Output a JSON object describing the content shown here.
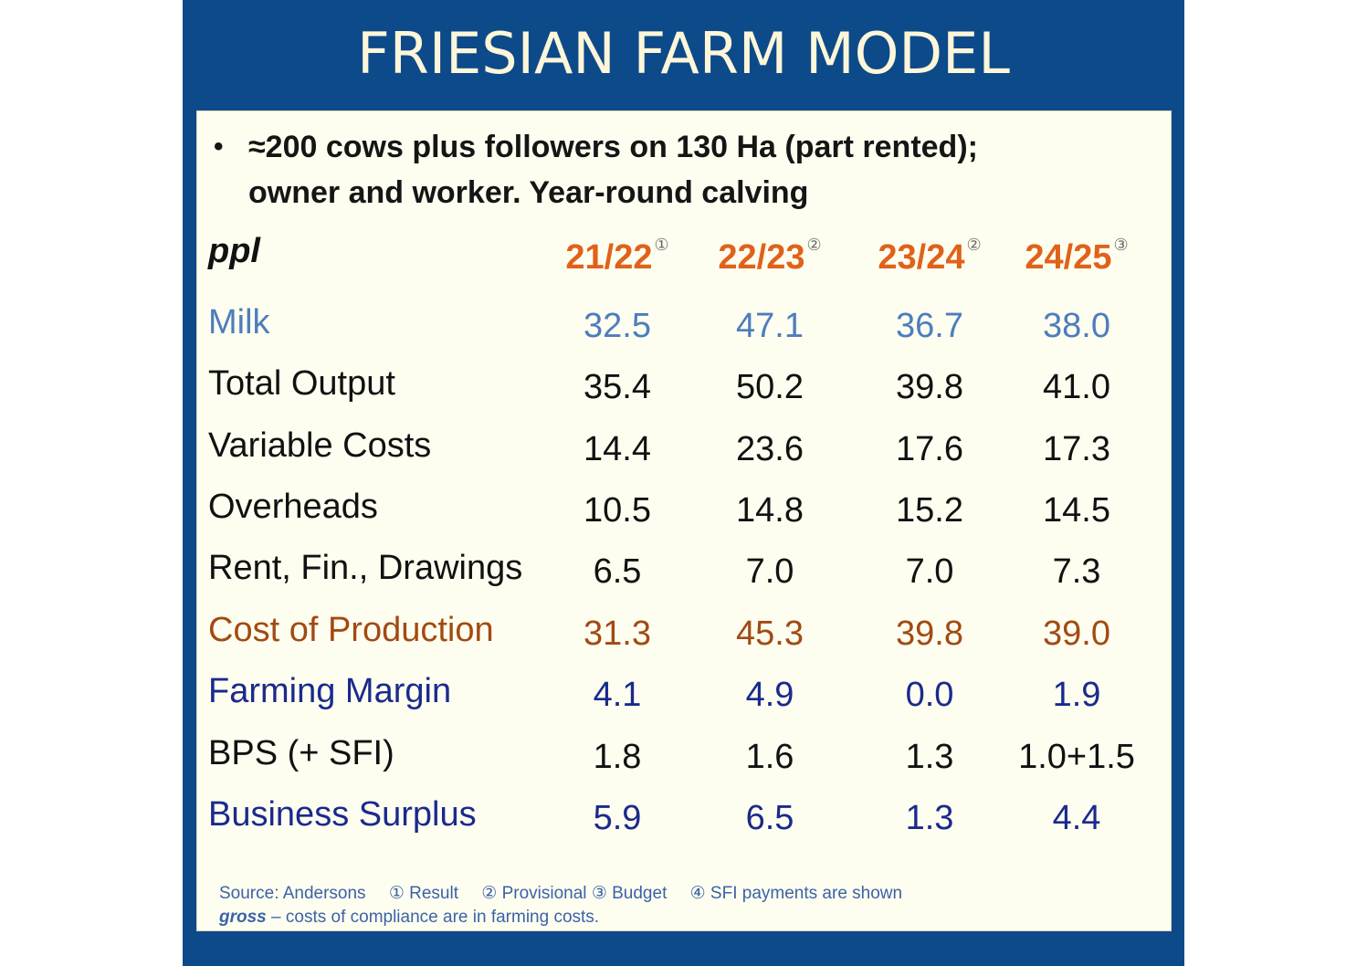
{
  "title": "FRIESIAN FARM MODEL",
  "bullet": {
    "marker": "•",
    "text_line1": "≈200 cows plus followers on 130 Ha (part rented);",
    "text_line2": "owner and worker.  Year-round calving"
  },
  "table": {
    "unit_label": "ppl",
    "columns": [
      {
        "label": "21/22",
        "note": "①"
      },
      {
        "label": "22/23",
        "note": "②"
      },
      {
        "label": "23/24",
        "note": "②"
      },
      {
        "label": "24/25",
        "note": "③"
      }
    ],
    "rows": [
      {
        "label": "Milk",
        "values": [
          "32.5",
          "47.1",
          "36.7",
          "38.0"
        ]
      },
      {
        "label": "Total Output",
        "values": [
          "35.4",
          "50.2",
          "39.8",
          "41.0"
        ]
      },
      {
        "label": "Variable Costs",
        "values": [
          "14.4",
          "23.6",
          "17.6",
          "17.3"
        ]
      },
      {
        "label": "Overheads",
        "values": [
          "10.5",
          "14.8",
          "15.2",
          "14.5"
        ]
      },
      {
        "label": "Rent, Fin., Drawings",
        "values": [
          "6.5",
          "7.0",
          "7.0",
          "7.3"
        ]
      },
      {
        "label": "Cost of Production",
        "values": [
          "31.3",
          "45.3",
          "39.8",
          "39.0"
        ]
      },
      {
        "label": "Farming Margin",
        "values": [
          "4.1",
          "4.9",
          "0.0",
          "1.9"
        ]
      },
      {
        "label": "BPS (+ SFI)",
        "values": [
          "1.8",
          "1.6",
          "1.3",
          "1.0+1.5"
        ]
      },
      {
        "label": "Business Surplus",
        "values": [
          "5.9",
          "6.5",
          "1.3",
          "4.4"
        ]
      }
    ]
  },
  "footnote": {
    "source": "Source: Andersons",
    "note1": "① Result",
    "note2": "② Provisional",
    "note3": "③ Budget",
    "note4": "④ SFI payments are shown",
    "gross": "gross",
    "line2_rest": " – costs of compliance are in farming costs."
  },
  "colors": {
    "background_frame": "#0d4a8a",
    "panel": "#fefef0",
    "title_text": "#fdf6d8",
    "header_year": "#e0621a",
    "milk_row": "#4d7dbd",
    "cost_of_production_row": "#a24a12",
    "margin_rows": "#1a2a8c",
    "footnote": "#3b62a8"
  }
}
